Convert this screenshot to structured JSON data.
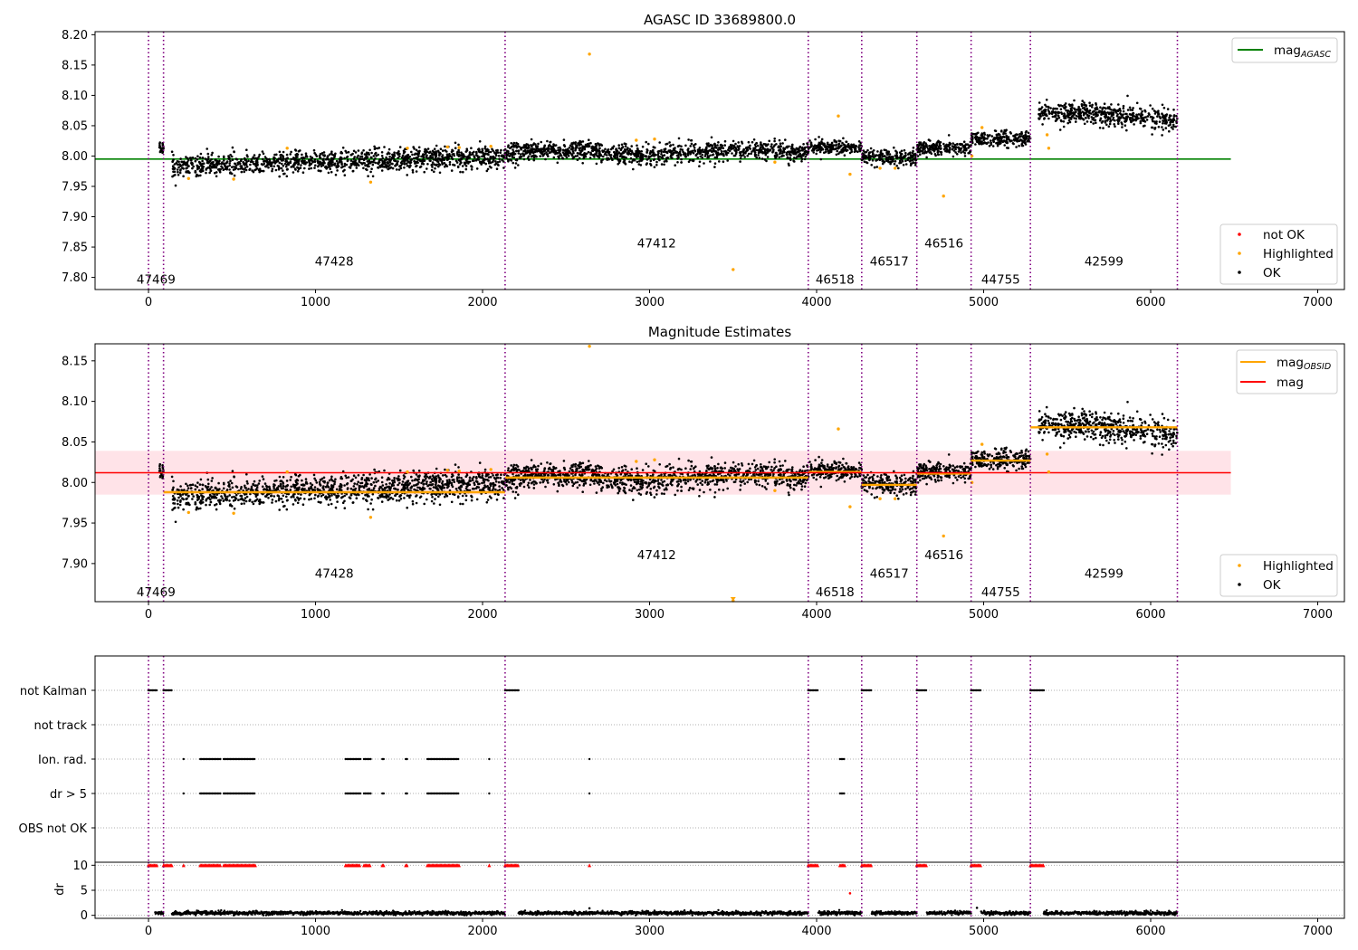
{
  "chart_data": [
    {
      "type": "scatter",
      "title": "AGASC ID 33689800.0",
      "xlabel": "",
      "ylabel": "",
      "xlim": [
        -320,
        7160
      ],
      "ylim": [
        7.78,
        8.205
      ],
      "xticks": [
        0,
        1000,
        2000,
        3000,
        4000,
        5000,
        6000,
        7000
      ],
      "yticks": [
        7.8,
        7.85,
        7.9,
        7.95,
        8.0,
        8.05,
        8.1,
        8.15,
        8.2
      ],
      "ytick_labels": [
        "7.80",
        "7.85",
        "7.90",
        "7.95",
        "8.00",
        "8.05",
        "8.10",
        "8.15",
        "8.20"
      ],
      "obsid_boundaries": [
        0,
        90,
        2135,
        3950,
        4270,
        4600,
        4925,
        5280,
        6160
      ],
      "obsid_labels": [
        {
          "label": "47469",
          "x": 45,
          "y": 7.797
        },
        {
          "label": "47428",
          "x": 1112,
          "y": 7.827
        },
        {
          "label": "47412",
          "x": 3042,
          "y": 7.857
        },
        {
          "label": "46518",
          "x": 4110,
          "y": 7.797
        },
        {
          "label": "46517",
          "x": 4435,
          "y": 7.827
        },
        {
          "label": "46516",
          "x": 4762,
          "y": 7.857
        },
        {
          "label": "44755",
          "x": 5102,
          "y": 7.797
        },
        {
          "label": "42599",
          "x": 5720,
          "y": 7.827
        }
      ],
      "reference_line": {
        "name": "mag_AGASC",
        "y": 7.995,
        "x": [
          -320,
          6480
        ],
        "color": "#008000"
      },
      "segments": [
        {
          "x": [
            60,
            90
          ],
          "mean": 8.015,
          "spread": 0.006
        },
        {
          "x": [
            140,
            2135
          ],
          "mean": 7.991,
          "spread": 0.009,
          "slope": 8.5e-06
        },
        {
          "x": [
            2135,
            3950
          ],
          "mean": 8.006,
          "spread": 0.008,
          "wave": 0.004
        },
        {
          "x": [
            3950,
            4270
          ],
          "mean": 8.015,
          "spread": 0.006
        },
        {
          "x": [
            4270,
            4600
          ],
          "mean": 7.998,
          "spread": 0.006
        },
        {
          "x": [
            4600,
            4925
          ],
          "mean": 8.013,
          "spread": 0.006
        },
        {
          "x": [
            4925,
            5280
          ],
          "mean": 8.028,
          "spread": 0.006
        },
        {
          "x": [
            5330,
            6160
          ],
          "mean": 8.067,
          "spread": 0.009,
          "slope": -1.5e-05
        }
      ],
      "highlighted": [
        [
          240,
          7.963
        ],
        [
          510,
          7.962
        ],
        [
          830,
          8.013
        ],
        [
          1330,
          7.957
        ],
        [
          1550,
          8.013
        ],
        [
          1790,
          8.015
        ],
        [
          1860,
          8.014
        ],
        [
          2050,
          8.016
        ],
        [
          2640,
          8.168
        ],
        [
          2920,
          8.026
        ],
        [
          3030,
          8.028
        ],
        [
          3500,
          7.813
        ],
        [
          3750,
          7.99
        ],
        [
          4130,
          8.066
        ],
        [
          4200,
          7.97
        ],
        [
          4380,
          7.98
        ],
        [
          4470,
          7.98
        ],
        [
          4760,
          7.934
        ],
        [
          4930,
          8.0
        ],
        [
          4990,
          8.047
        ],
        [
          5380,
          8.035
        ],
        [
          5390,
          8.013
        ]
      ],
      "series": [
        {
          "name": "not OK",
          "color": "#ff0000",
          "values": []
        },
        {
          "name": "Highlighted",
          "color": "#ffa500"
        },
        {
          "name": "OK",
          "color": "#000000"
        }
      ],
      "legend_position": [
        "top-right",
        "bottom-right"
      ]
    },
    {
      "type": "scatter",
      "title": "Magnitude Estimates",
      "xlabel": "",
      "ylabel": "",
      "xlim": [
        -320,
        7160
      ],
      "ylim": [
        7.853,
        8.171
      ],
      "xticks": [
        0,
        1000,
        2000,
        3000,
        4000,
        5000,
        6000,
        7000
      ],
      "yticks": [
        7.9,
        7.95,
        8.0,
        8.05,
        8.1,
        8.15
      ],
      "ytick_labels": [
        "7.90",
        "7.95",
        "8.00",
        "8.05",
        "8.10",
        "8.15"
      ],
      "obsid_boundaries": [
        0,
        90,
        2135,
        3950,
        4270,
        4600,
        4925,
        5280,
        6160
      ],
      "obsid_labels": [
        {
          "label": "47469",
          "x": 45,
          "y": 7.865
        },
        {
          "label": "47428",
          "x": 1112,
          "y": 7.888
        },
        {
          "label": "47412",
          "x": 3042,
          "y": 7.911
        },
        {
          "label": "46518",
          "x": 4110,
          "y": 7.865
        },
        {
          "label": "46517",
          "x": 4435,
          "y": 7.888
        },
        {
          "label": "46516",
          "x": 4762,
          "y": 7.911
        },
        {
          "label": "44755",
          "x": 5102,
          "y": 7.865
        },
        {
          "label": "42599",
          "x": 5720,
          "y": 7.888
        }
      ],
      "mag_line": {
        "name": "mag",
        "y": 8.012,
        "band": [
          7.985,
          8.039
        ],
        "x": [
          -320,
          6480
        ],
        "color": "#ff0000"
      },
      "obsid_mag_lines": [
        {
          "name": "mag_OBSID",
          "x": [
            90,
            2135
          ],
          "y": 7.988
        },
        {
          "x": [
            2135,
            3950
          ],
          "y": 8.006
        },
        {
          "x": [
            3950,
            4270
          ],
          "y": 8.013
        },
        {
          "x": [
            4270,
            4600
          ],
          "y": 7.997
        },
        {
          "x": [
            4600,
            4925
          ],
          "y": 8.011
        },
        {
          "x": [
            4925,
            5280
          ],
          "y": 8.027
        },
        {
          "x": [
            5280,
            6160
          ],
          "y": 8.068
        }
      ],
      "series": [
        {
          "name": "Highlighted",
          "color": "#ffa500"
        },
        {
          "name": "OK",
          "color": "#000000"
        }
      ],
      "legend_position": [
        "top-right",
        "bottom-right"
      ]
    },
    {
      "type": "scatter",
      "title": "",
      "xlabel": "",
      "ylabel": "",
      "xlim": [
        -320,
        7160
      ],
      "xticks": [
        0,
        1000,
        2000,
        3000,
        4000,
        5000,
        6000,
        7000
      ],
      "categories": [
        "not Kalman",
        "not track",
        "Ion. rad.",
        "dr > 5",
        "OBS not OK"
      ],
      "obsid_boundaries": [
        0,
        90,
        2135,
        3950,
        4270,
        4600,
        4925,
        5280,
        6160
      ],
      "flag_ranges": {
        "not Kalman": [
          [
            0,
            55
          ],
          [
            90,
            145
          ],
          [
            2135,
            2215
          ],
          [
            3950,
            4010
          ],
          [
            4270,
            4330
          ],
          [
            4600,
            4660
          ],
          [
            4925,
            4985
          ],
          [
            5280,
            5360
          ]
        ],
        "not track": [],
        "Ion. rad.": [
          [
            210,
            215
          ],
          [
            310,
            430
          ],
          [
            450,
            640
          ],
          [
            1180,
            1270
          ],
          [
            1290,
            1330
          ],
          [
            1400,
            1410
          ],
          [
            1540,
            1550
          ],
          [
            1670,
            1860
          ],
          [
            2040,
            2045
          ],
          [
            2640,
            2645
          ],
          [
            4140,
            4170
          ]
        ],
        "dr > 5": [
          [
            210,
            215
          ],
          [
            310,
            430
          ],
          [
            450,
            640
          ],
          [
            1180,
            1270
          ],
          [
            1290,
            1330
          ],
          [
            1400,
            1410
          ],
          [
            1540,
            1550
          ],
          [
            1670,
            1860
          ],
          [
            2040,
            2045
          ],
          [
            2640,
            2645
          ],
          [
            4140,
            4170
          ]
        ],
        "OBS not OK": []
      }
    },
    {
      "type": "scatter",
      "title": "",
      "xlabel": "",
      "ylabel": "dr",
      "xlim": [
        -320,
        7160
      ],
      "ylim": [
        -0.6,
        10.6
      ],
      "xticks": [
        0,
        1000,
        2000,
        3000,
        4000,
        5000,
        6000,
        7000
      ],
      "xtick_labels": [
        "0",
        "1000",
        "2000",
        "3000",
        "4000",
        "5000",
        "6000",
        "7000"
      ],
      "yticks": [
        0,
        5,
        10
      ],
      "ytick_labels": [
        "0",
        "5",
        "10"
      ],
      "obsid_boundaries": [
        0,
        90,
        2135,
        3950,
        4270,
        4600,
        4925,
        5280,
        6160
      ],
      "ok_segments": [
        [
          40,
          90
        ],
        [
          140,
          2135
        ],
        [
          2215,
          3950
        ],
        [
          4010,
          4270
        ],
        [
          4330,
          4600
        ],
        [
          4660,
          4925
        ],
        [
          4985,
          5280
        ],
        [
          5360,
          6160
        ]
      ],
      "outliers_clipped_at": 10,
      "series": [
        {
          "name": "not OK",
          "color": "#ff0000"
        },
        {
          "name": "OK",
          "color": "#000000"
        }
      ],
      "extra_points": [
        [
          2640,
          1.4
        ],
        [
          4200,
          4.4
        ],
        [
          4960,
          1.5
        ]
      ]
    }
  ],
  "colors": {
    "boundary": "#800080",
    "ok": "#000000",
    "highlighted": "#ffa500",
    "not_ok": "#ff0000",
    "agasc": "#008000",
    "obsid_line": "#ffa500",
    "band": "#ffc0cb"
  }
}
